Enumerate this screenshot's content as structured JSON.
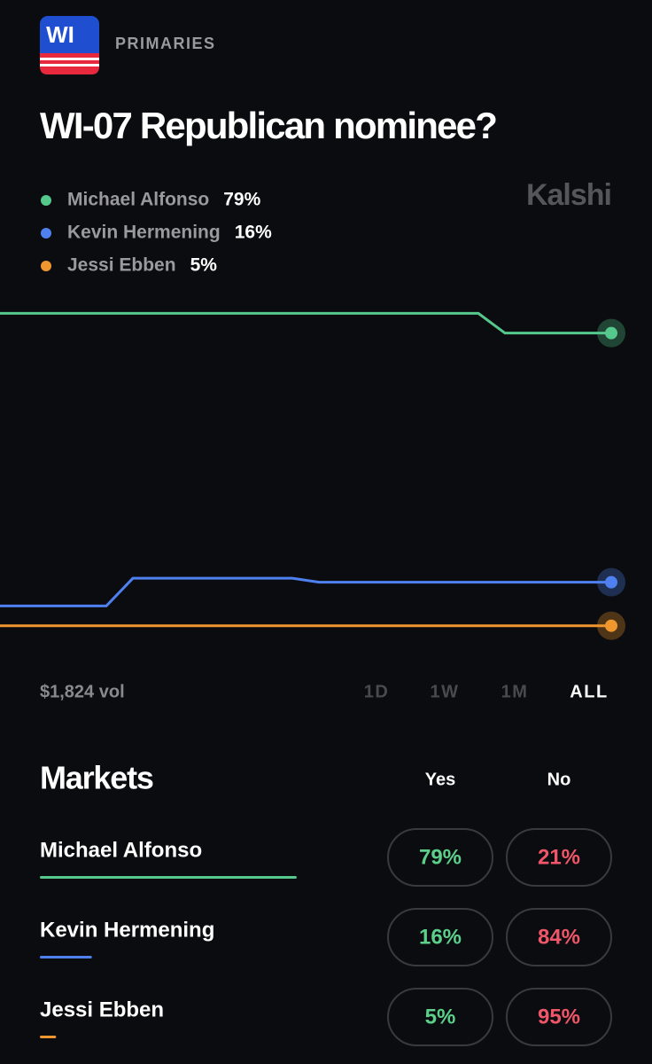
{
  "header": {
    "badge": "WI",
    "category": "PRIMARIES",
    "title": "WI-07 Republican nominee?",
    "brand": "Kalshi"
  },
  "chart_data": {
    "type": "line",
    "categories": [
      null,
      null,
      null,
      null,
      null,
      null,
      null,
      null,
      null,
      null,
      null,
      null,
      null,
      null,
      null,
      null,
      null,
      null,
      null,
      null,
      null,
      null,
      null,
      null
    ],
    "ylim": [
      0,
      100
    ],
    "series": [
      {
        "name": "Michael Alfonso",
        "color": "#55c98b",
        "label": "79%",
        "values": [
          84,
          84,
          84,
          84,
          84,
          84,
          84,
          84,
          84,
          84,
          84,
          84,
          84,
          84,
          84,
          84,
          84,
          84,
          84,
          79,
          79,
          79,
          79,
          79
        ]
      },
      {
        "name": "Kevin Hermening",
        "color": "#4f80f0",
        "label": "16%",
        "values": [
          10,
          10,
          10,
          10,
          10,
          17,
          17,
          17,
          17,
          17,
          17,
          17,
          16,
          16,
          16,
          16,
          16,
          16,
          16,
          16,
          16,
          16,
          16,
          16
        ]
      },
      {
        "name": "Jessi Ebben",
        "color": "#f0962e",
        "label": "5%",
        "values": [
          5,
          5,
          5,
          5,
          5,
          5,
          5,
          5,
          5,
          5,
          5,
          5,
          5,
          5,
          5,
          5,
          5,
          5,
          5,
          5,
          5,
          5,
          5,
          5
        ]
      }
    ]
  },
  "controls": {
    "volume": "$1,824 vol",
    "ranges": [
      "1D",
      "1W",
      "1M",
      "ALL"
    ],
    "selected": 3
  },
  "markets": {
    "heading": "Markets",
    "columns": [
      "Yes",
      "No"
    ],
    "rows": [
      {
        "name": "Michael Alfonso",
        "yes": "79%",
        "no": "21%"
      },
      {
        "name": "Kevin Hermening",
        "yes": "16%",
        "no": "84%"
      },
      {
        "name": "Jessi Ebben",
        "yes": "5%",
        "no": "95%"
      }
    ]
  }
}
